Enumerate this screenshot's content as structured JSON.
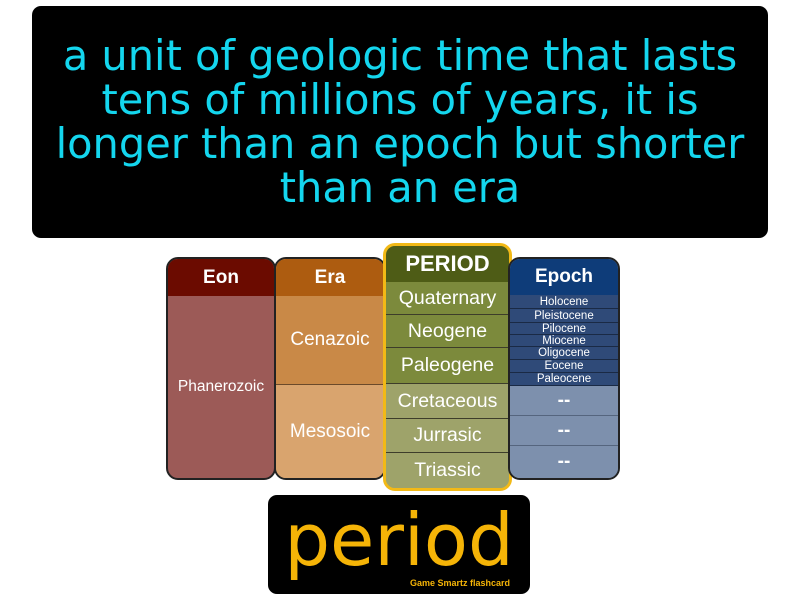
{
  "definition": "a unit of geologic time that lasts tens of millions of years, it is longer than an epoch but shorter than an era",
  "table": {
    "eon": {
      "header": "Eon",
      "cells": [
        "Phanerozoic"
      ]
    },
    "era": {
      "header": "Era",
      "cells": [
        "Cenazoic",
        "Mesosoic"
      ]
    },
    "period": {
      "header": "PERIOD",
      "cells": [
        "Quaternary",
        "Neogene",
        "Paleogene",
        "Cretaceous",
        "Jurrasic",
        "Triassic"
      ]
    },
    "epoch": {
      "header": "Epoch",
      "cells": [
        "Holocene",
        "Pleistocene",
        "Pilocene",
        "Miocene",
        "Oligocene",
        "Eocene",
        "Paleocene",
        "--",
        "--",
        "--"
      ]
    }
  },
  "term": "period",
  "brand": "Game Smartz flashcard",
  "colors": {
    "definition_text": "#14d6ee",
    "term_text": "#f5b407",
    "period_highlight": "#f2b916"
  }
}
